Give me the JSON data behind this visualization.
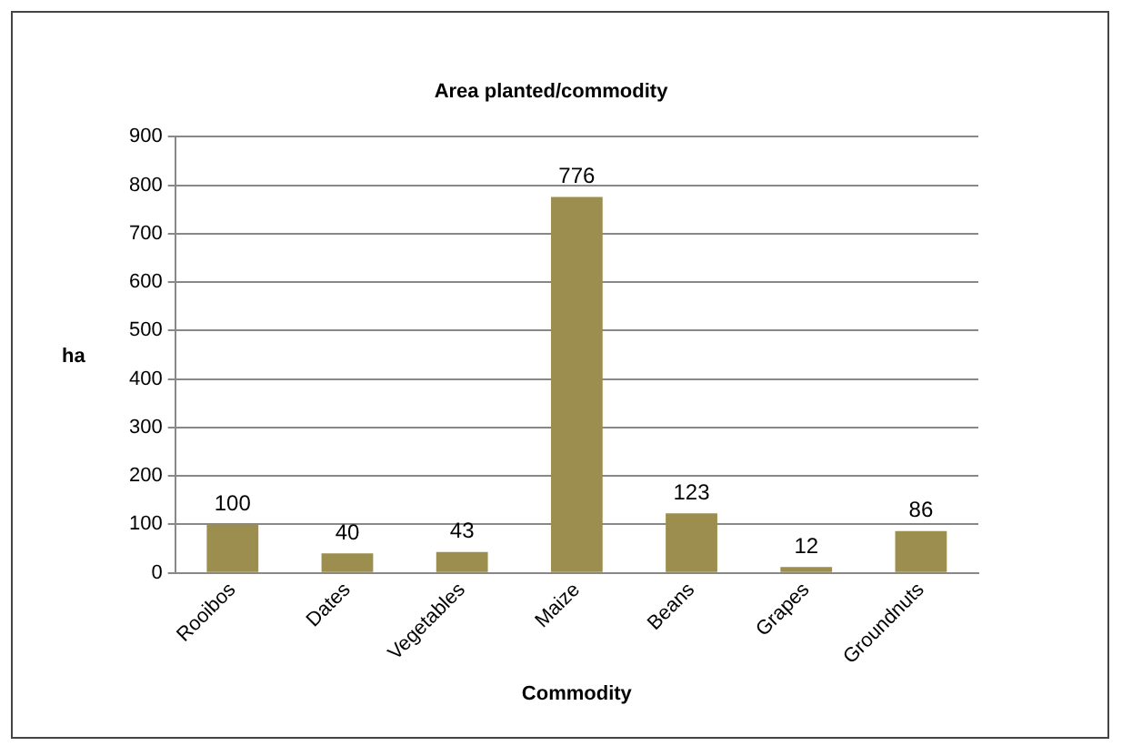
{
  "chart_data": {
    "type": "bar",
    "title": "Area planted/commodity",
    "xlabel": "Commodity",
    "ylabel": "ha",
    "categories": [
      "Rooibos",
      "Dates",
      "Vegetables",
      "Maize",
      "Beans",
      "Grapes",
      "Groundnuts"
    ],
    "values": [
      100,
      40,
      43,
      776,
      123,
      12,
      86
    ],
    "color": "#9c8e4f",
    "ylim": [
      0,
      900
    ],
    "yticks": [
      0,
      100,
      200,
      300,
      400,
      500,
      600,
      700,
      800,
      900
    ],
    "grid": "y",
    "data_labels": true,
    "legend": false
  }
}
